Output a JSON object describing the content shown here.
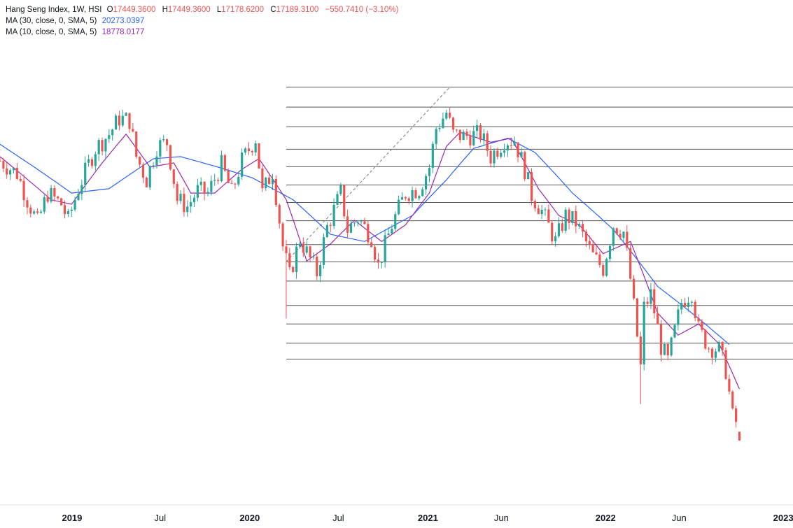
{
  "legend": {
    "symbol": "Hang Seng Index, 1W, HSI",
    "open_key": "O",
    "open": "17449.3600",
    "high_key": "H",
    "high": "17449.3600",
    "low_key": "L",
    "low": "17178.6200",
    "close_key": "C",
    "close": "17189.3100",
    "change": "−550.7410 (−3.10%)",
    "ma30_label": "MA (30, close, 0, SMA, 5)",
    "ma30_value": "20273.0397",
    "ma10_label": "MA (10, close, 0, SMA, 5)",
    "ma10_value": "18778.0177"
  },
  "colors": {
    "up": "#26a69a",
    "down": "#ef5350",
    "ma30": "#2962ff",
    "ma10": "#9c27b0",
    "fib_lines": "#555555",
    "trend": "#787b86"
  },
  "chart_data": {
    "type": "candlestick",
    "x_axis_labels": [
      "2019",
      "Jul",
      "2020",
      "Jul",
      "2021",
      "Jun",
      "2022",
      "Jun",
      "2023"
    ],
    "x_axis_dates": [
      "2019-01-01",
      "2019-07-01",
      "2020-01-01",
      "2020-07-01",
      "2021-01-01",
      "2021-06-01",
      "2022-01-01",
      "2022-06-01",
      "2023-01-01"
    ],
    "x_range": [
      "2018-08-06",
      "2023-01-21"
    ],
    "y_range": [
      15800,
      32500
    ],
    "scale": "log",
    "last_candle": {
      "date": "2022-10-03",
      "open": 17449.36,
      "high": 17449.36,
      "low": 17178.62,
      "close": 17189.31
    },
    "weekly_closes_anchors": [
      [
        "2018-08-06",
        27800
      ],
      [
        "2018-09-10",
        27200
      ],
      [
        "2018-10-01",
        26000
      ],
      [
        "2018-10-22",
        25000
      ],
      [
        "2018-11-12",
        26300
      ],
      [
        "2018-12-10",
        25800
      ],
      [
        "2018-12-24",
        25100
      ],
      [
        "2019-01-14",
        26500
      ],
      [
        "2019-02-18",
        28400
      ],
      [
        "2019-03-18",
        29100
      ],
      [
        "2019-04-08",
        29900
      ],
      [
        "2019-04-29",
        29800
      ],
      [
        "2019-05-13",
        28000
      ],
      [
        "2019-06-03",
        26900
      ],
      [
        "2019-06-24",
        28500
      ],
      [
        "2019-07-15",
        28700
      ],
      [
        "2019-08-05",
        26000
      ],
      [
        "2019-08-26",
        25700
      ],
      [
        "2019-09-16",
        26400
      ],
      [
        "2019-10-07",
        26300
      ],
      [
        "2019-11-04",
        27600
      ],
      [
        "2019-11-25",
        26300
      ],
      [
        "2019-12-16",
        27800
      ],
      [
        "2020-01-13",
        28900
      ],
      [
        "2020-01-27",
        26300
      ],
      [
        "2020-02-17",
        27300
      ],
      [
        "2020-03-09",
        24000
      ],
      [
        "2020-03-23",
        22800
      ],
      [
        "2020-04-13",
        24300
      ],
      [
        "2020-05-18",
        22930
      ],
      [
        "2020-06-08",
        24800
      ],
      [
        "2020-07-06",
        26300
      ],
      [
        "2020-07-20",
        24700
      ],
      [
        "2020-08-10",
        25200
      ],
      [
        "2020-09-07",
        24400
      ],
      [
        "2020-09-21",
        23200
      ],
      [
        "2020-10-19",
        24900
      ],
      [
        "2020-11-16",
        26300
      ],
      [
        "2020-12-14",
        26500
      ],
      [
        "2021-01-04",
        27500
      ],
      [
        "2021-01-18",
        29400
      ],
      [
        "2021-02-08",
        30200
      ],
      [
        "2021-02-22",
        29100
      ],
      [
        "2021-03-15",
        29000
      ],
      [
        "2021-04-19",
        29100
      ],
      [
        "2021-05-10",
        28000
      ],
      [
        "2021-06-07",
        28800
      ],
      [
        "2021-06-28",
        28800
      ],
      [
        "2021-07-19",
        27400
      ],
      [
        "2021-08-02",
        26200
      ],
      [
        "2021-08-23",
        25500
      ],
      [
        "2021-09-20",
        24200
      ],
      [
        "2021-10-11",
        25300
      ],
      [
        "2021-11-01",
        25000
      ],
      [
        "2021-12-06",
        23600
      ],
      [
        "2021-12-27",
        23100
      ],
      [
        "2022-01-17",
        24900
      ],
      [
        "2022-02-07",
        24600
      ],
      [
        "2022-02-21",
        22700
      ],
      [
        "2022-03-14",
        19500
      ],
      [
        "2022-03-21",
        21600
      ],
      [
        "2022-04-04",
        22100
      ],
      [
        "2022-04-25",
        20200
      ],
      [
        "2022-05-09",
        19700
      ],
      [
        "2022-06-06",
        21800
      ],
      [
        "2022-06-27",
        22200
      ],
      [
        "2022-07-11",
        20800
      ],
      [
        "2022-08-01",
        20200
      ],
      [
        "2022-08-22",
        20100
      ],
      [
        "2022-09-05",
        19400
      ],
      [
        "2022-09-19",
        17900
      ],
      [
        "2022-09-26",
        17740
      ],
      [
        "2022-10-03",
        17189
      ]
    ],
    "ma30_anchors": [
      [
        "2018-08-06",
        28600
      ],
      [
        "2018-12-31",
        26300
      ],
      [
        "2019-03-18",
        26500
      ],
      [
        "2019-06-17",
        27900
      ],
      [
        "2019-08-12",
        28000
      ],
      [
        "2019-10-28",
        27500
      ],
      [
        "2020-01-06",
        27000
      ],
      [
        "2020-03-30",
        26000
      ],
      [
        "2020-06-15",
        24500
      ],
      [
        "2020-08-24",
        24200
      ],
      [
        "2020-11-30",
        25300
      ],
      [
        "2021-02-08",
        26900
      ],
      [
        "2021-04-05",
        28400
      ],
      [
        "2021-06-14",
        28900
      ],
      [
        "2021-08-09",
        28200
      ],
      [
        "2021-10-25",
        26300
      ],
      [
        "2022-01-17",
        24700
      ],
      [
        "2022-04-18",
        22400
      ],
      [
        "2022-07-11",
        21200
      ],
      [
        "2022-09-12",
        20273
      ]
    ],
    "ma10_anchors": [
      [
        "2018-08-06",
        28000
      ],
      [
        "2018-11-19",
        26000
      ],
      [
        "2018-12-31",
        25800
      ],
      [
        "2019-03-04",
        27700
      ],
      [
        "2019-04-22",
        29100
      ],
      [
        "2019-06-10",
        27500
      ],
      [
        "2019-07-29",
        27700
      ],
      [
        "2019-09-02",
        26300
      ],
      [
        "2019-10-21",
        26300
      ],
      [
        "2019-12-16",
        27400
      ],
      [
        "2020-01-20",
        27900
      ],
      [
        "2020-03-16",
        26000
      ],
      [
        "2020-04-27",
        23400
      ],
      [
        "2020-06-15",
        24100
      ],
      [
        "2020-08-03",
        25100
      ],
      [
        "2020-09-28",
        24200
      ],
      [
        "2020-11-16",
        24900
      ],
      [
        "2021-01-04",
        26300
      ],
      [
        "2021-02-08",
        28500
      ],
      [
        "2021-03-08",
        29200
      ],
      [
        "2021-05-10",
        28700
      ],
      [
        "2021-06-21",
        28900
      ],
      [
        "2021-08-16",
        26500
      ],
      [
        "2021-09-27",
        25300
      ],
      [
        "2021-11-08",
        24900
      ],
      [
        "2021-12-27",
        23700
      ],
      [
        "2022-02-21",
        24200
      ],
      [
        "2022-04-18",
        21400
      ],
      [
        "2022-05-30",
        20600
      ],
      [
        "2022-07-11",
        21000
      ],
      [
        "2022-08-22",
        20300
      ],
      [
        "2022-10-03",
        18778
      ]
    ],
    "fib_levels": [
      31550,
      30490,
      29480,
      28360,
      27520,
      26670,
      25880,
      25080,
      24070,
      23370,
      22610,
      21680,
      21000,
      20320,
      19770
    ],
    "fib_x_start": "2020-03-16",
    "trendline": {
      "from": [
        "2020-03-16",
        23370
      ],
      "to": [
        "2021-02-15",
        31550
      ]
    }
  }
}
